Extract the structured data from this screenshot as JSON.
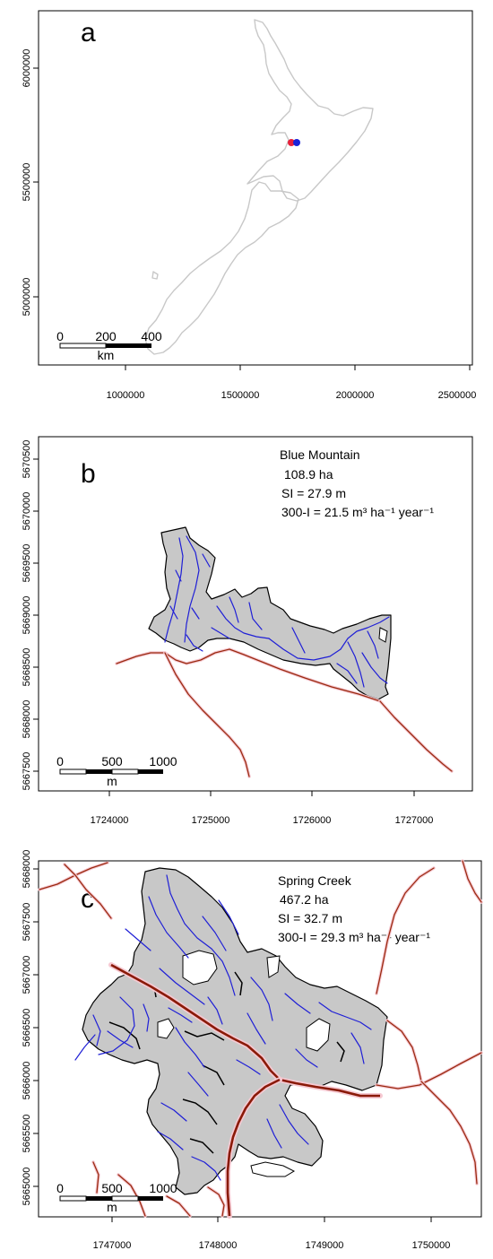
{
  "panels": {
    "a": {
      "letter": "a",
      "x_ticks": [
        "1000000",
        "1500000",
        "2000000",
        "2500000"
      ],
      "y_ticks": [
        "6000000",
        "5500000",
        "5000000"
      ],
      "scalebar": {
        "labels": [
          "0",
          "200",
          "400"
        ],
        "unit": "km"
      },
      "markers": [
        {
          "name": "Blue Mountain",
          "color": "#e8203a"
        },
        {
          "name": "Spring Creek",
          "color": "#1a22d8"
        }
      ]
    },
    "b": {
      "letter": "b",
      "site_name": "Blue Mountain",
      "area": "108.9 ha",
      "si": "SI = 27.9 m",
      "increment": "300-I = 21.5 m³  ha⁻¹ year⁻¹",
      "x_ticks": [
        "1724000",
        "1725000",
        "1726000",
        "1727000"
      ],
      "y_ticks": [
        "5670500",
        "5670000",
        "5669500",
        "5669000",
        "5668500",
        "5668000",
        "5667500"
      ],
      "scalebar": {
        "labels": [
          "0",
          "500",
          "1000"
        ],
        "unit": "m"
      }
    },
    "c": {
      "letter": "c",
      "site_name": "Spring Creek",
      "area": "467.2 ha",
      "si": "SI = 32.7 m",
      "increment": "300-I = 29.3 m³  ha⁻¹ year⁻¹",
      "x_ticks": [
        "1747000",
        "1748000",
        "1749000",
        "1750000"
      ],
      "y_ticks": [
        "5668000",
        "5667500",
        "5667000",
        "5666500",
        "5666000",
        "5665500",
        "5665000"
      ],
      "scalebar": {
        "labels": [
          "0",
          "500",
          "1000"
        ],
        "unit": "m"
      }
    }
  },
  "colors": {
    "land_outline": "#c8c8c8",
    "forest_fill": "#c8c8c8",
    "stream": "#1f1fd6",
    "road": "#9a2a10"
  }
}
